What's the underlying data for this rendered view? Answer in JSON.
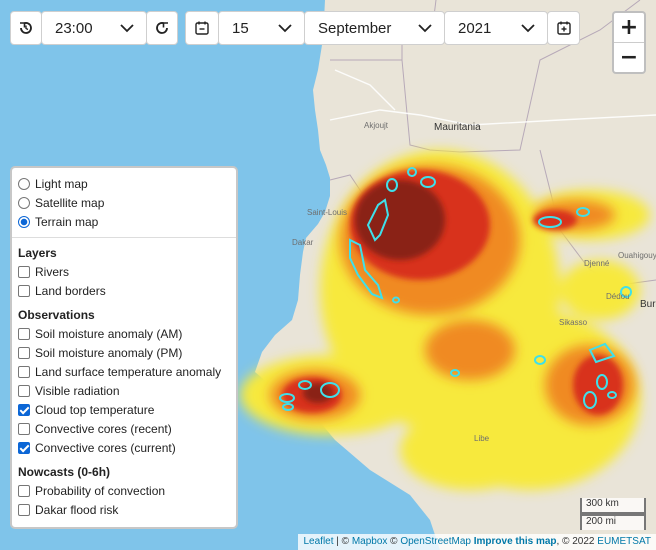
{
  "toolbar": {
    "time_value": "23:00",
    "day_value": "15",
    "month_value": "September",
    "year_value": "2021"
  },
  "zoom": {
    "in": "+",
    "out": "−"
  },
  "basemaps": [
    {
      "label": "Light map",
      "selected": false
    },
    {
      "label": "Satellite map",
      "selected": false
    },
    {
      "label": "Terrain map",
      "selected": true
    }
  ],
  "layers": {
    "heading": "Layers",
    "items": [
      {
        "label": "Rivers",
        "checked": false
      },
      {
        "label": "Land borders",
        "checked": false
      }
    ]
  },
  "observations": {
    "heading": "Observations",
    "items": [
      {
        "label": "Soil moisture anomaly (AM)",
        "checked": false
      },
      {
        "label": "Soil moisture anomaly (PM)",
        "checked": false
      },
      {
        "label": "Land surface temperature anomaly",
        "checked": false
      },
      {
        "label": "Visible radiation",
        "checked": false
      },
      {
        "label": "Cloud top temperature",
        "checked": true
      },
      {
        "label": "Convective cores (recent)",
        "checked": false
      },
      {
        "label": "Convective cores (current)",
        "checked": true
      }
    ]
  },
  "nowcasts": {
    "heading": "Nowcasts (0-6h)",
    "items": [
      {
        "label": "Probability of convection",
        "checked": false
      },
      {
        "label": "Dakar flood risk",
        "checked": false
      }
    ]
  },
  "scale": {
    "metric": "300 km",
    "imperial": "200 mi"
  },
  "map_labels": {
    "mauritania": "Mauritania",
    "dakar": "Dakar",
    "saint_louis": "Saint-Louis",
    "akjoujt": "Akjoujt",
    "burkina": "Burk",
    "libe": "Libe",
    "sikasso": "Sikasso",
    "djenne": "Djenné",
    "ouahigouya": "Ouahigouya",
    "dedou": "Dédou"
  },
  "attribution": {
    "leaflet": "Leaflet",
    "sep1": " | © ",
    "mapbox": "Mapbox",
    "sep2": " © ",
    "osm": "OpenStreetMap",
    "sep3": " ",
    "improve": "Improve this map",
    "sep4": ", © 2022 ",
    "eumetsat": "EUMETSAT"
  },
  "colors": {
    "ocean": "#7fc4ea",
    "land": "#e9e4d8",
    "cloud_yellow": "#f7e93c",
    "cloud_orange": "#f08a24",
    "cloud_red": "#d8321c",
    "cloud_darkred": "#8a2316",
    "core_outline": "#3fe0ea",
    "accent_blue": "#0b66d6"
  }
}
